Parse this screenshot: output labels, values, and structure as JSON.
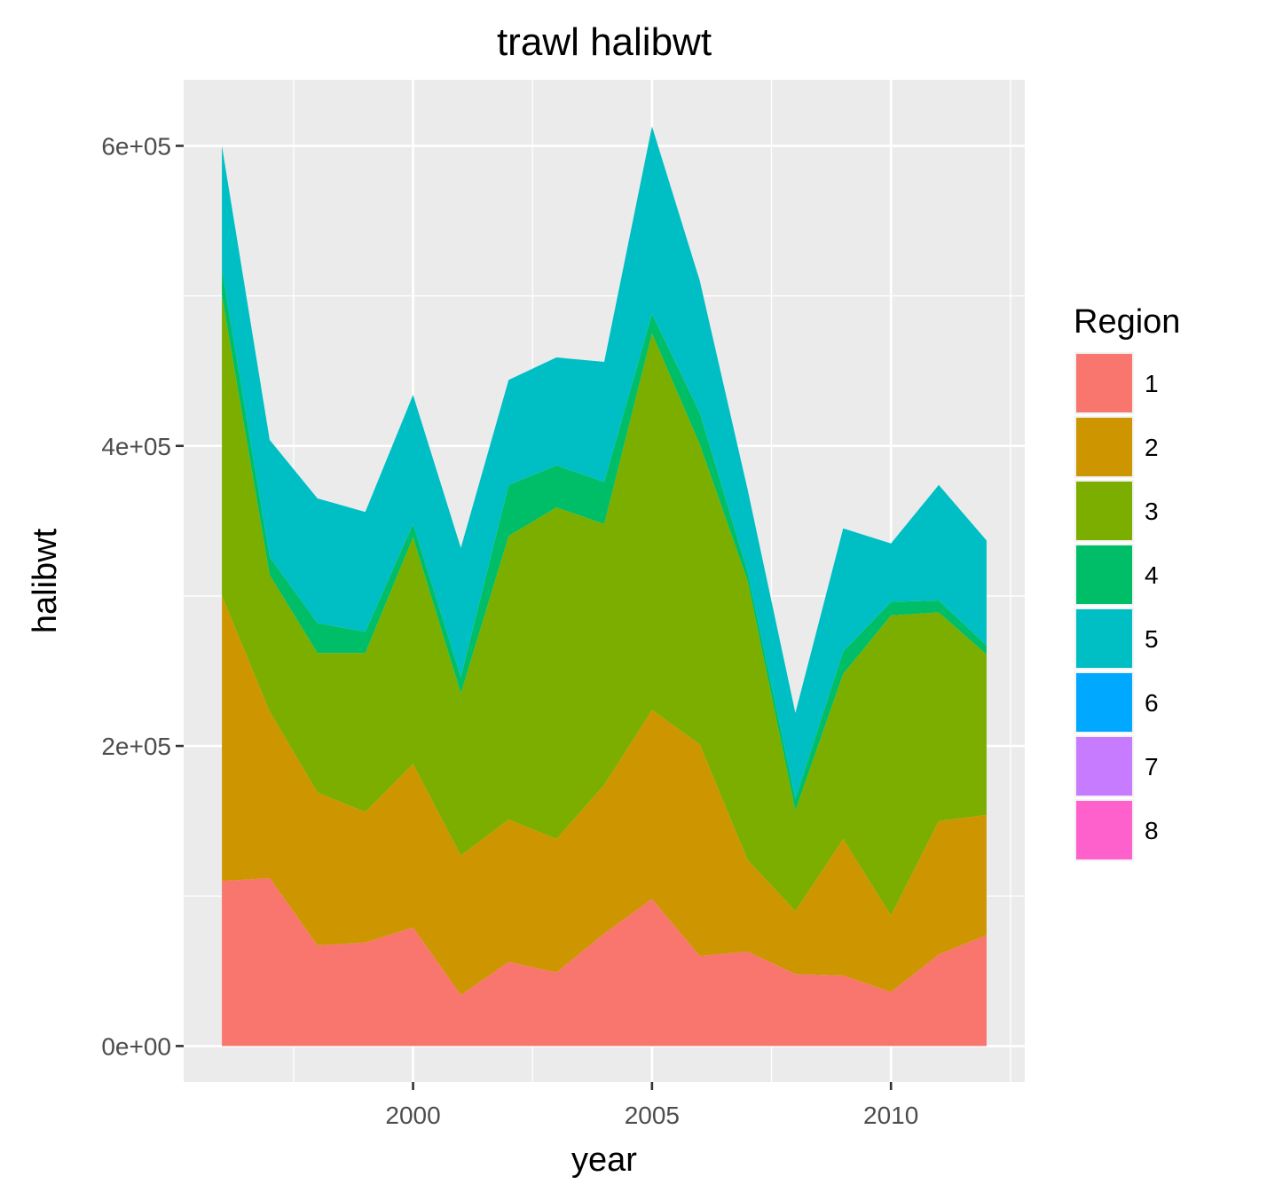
{
  "chart_data": {
    "type": "area",
    "stacked": true,
    "title": "trawl halibwt",
    "xlabel": "year",
    "ylabel": "halibwt",
    "x": [
      1996,
      1997,
      1998,
      1999,
      2000,
      2001,
      2002,
      2003,
      2004,
      2005,
      2006,
      2007,
      2008,
      2009,
      2010,
      2011,
      2012
    ],
    "xlim": [
      1995.2,
      2012.8
    ],
    "ylim": [
      -24000,
      644000
    ],
    "x_ticks": [
      2000,
      2005,
      2010
    ],
    "x_tick_labels": [
      "2000",
      "2005",
      "2010"
    ],
    "y_ticks": [
      0,
      200000,
      400000,
      600000
    ],
    "y_tick_labels": [
      "0e+00",
      "2e+05",
      "4e+05",
      "6e+05"
    ],
    "grid": true,
    "legend": {
      "title": "Region",
      "position": "right"
    },
    "series": [
      {
        "name": "1",
        "color": "#F8766D",
        "values": [
          110000,
          112000,
          67000,
          69000,
          79000,
          34000,
          56000,
          49000,
          75000,
          98000,
          60000,
          63000,
          48000,
          47000,
          36000,
          61000,
          74000
        ]
      },
      {
        "name": "2",
        "color": "#CD9600",
        "values": [
          190000,
          111000,
          102000,
          87000,
          109000,
          93000,
          95000,
          89000,
          99000,
          126000,
          141000,
          61000,
          42000,
          91000,
          51000,
          89000,
          80000
        ]
      },
      {
        "name": "3",
        "color": "#7CAE00",
        "values": [
          200000,
          91000,
          93000,
          106000,
          151000,
          108000,
          189000,
          221000,
          174000,
          251000,
          200000,
          186000,
          67000,
          110000,
          200000,
          139000,
          107000
        ]
      },
      {
        "name": "4",
        "color": "#00BE67",
        "values": [
          18000,
          12000,
          20000,
          14000,
          9000,
          11000,
          34000,
          28000,
          28000,
          13000,
          21000,
          6000,
          8000,
          15000,
          9000,
          8000,
          6000
        ]
      },
      {
        "name": "5",
        "color": "#00BFC4",
        "values": [
          82000,
          78000,
          83000,
          80000,
          86000,
          86000,
          70000,
          72000,
          80000,
          125000,
          88000,
          55000,
          57000,
          82000,
          39000,
          77000,
          70000
        ]
      },
      {
        "name": "6",
        "color": "#00A9FF",
        "values": [
          0,
          0,
          0,
          0,
          0,
          0,
          0,
          0,
          0,
          0,
          0,
          0,
          0,
          0,
          0,
          0,
          0
        ]
      },
      {
        "name": "7",
        "color": "#C77CFF",
        "values": [
          0,
          0,
          0,
          0,
          0,
          0,
          0,
          0,
          0,
          0,
          0,
          0,
          0,
          0,
          0,
          0,
          0
        ]
      },
      {
        "name": "8",
        "color": "#FF61CC",
        "values": [
          0,
          0,
          0,
          0,
          0,
          0,
          0,
          0,
          0,
          0,
          0,
          0,
          0,
          0,
          0,
          0,
          0
        ]
      }
    ]
  }
}
